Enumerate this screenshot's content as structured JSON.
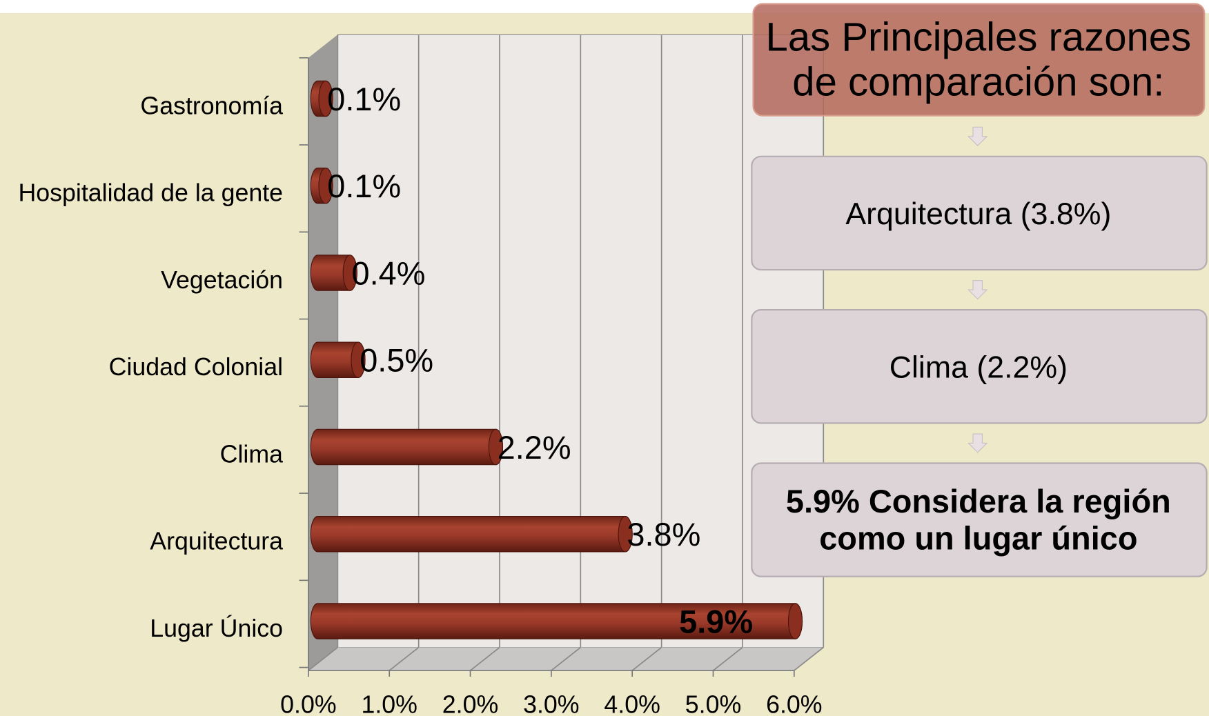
{
  "chart_data": {
    "type": "bar",
    "orientation": "horizontal",
    "categories": [
      "Gastronomía",
      "Hospitalidad de la gente",
      "Vegetación",
      "Ciudad Colonial",
      "Clima",
      "Arquitectura",
      "Lugar Único"
    ],
    "values": [
      0.1,
      0.1,
      0.4,
      0.5,
      2.2,
      3.8,
      5.9
    ],
    "value_labels": [
      "0.1%",
      "0.1%",
      "0.4%",
      "0.5%",
      "2.2%",
      "3.8%",
      "5.9%"
    ],
    "color": "#9b3a2a",
    "xlim": [
      0,
      6
    ],
    "xticks": [
      {
        "value": 0,
        "label": "0.0%"
      },
      {
        "value": 1,
        "label": "1.0%"
      },
      {
        "value": 2,
        "label": "2.0%"
      },
      {
        "value": 3,
        "label": "3.0%"
      },
      {
        "value": 4,
        "label": "4.0%"
      },
      {
        "value": 5,
        "label": "5.0%"
      },
      {
        "value": 6,
        "label": "6.0%"
      }
    ],
    "grid": true
  },
  "diagram": {
    "title_lines": [
      "Las Principales razones",
      "de comparación son:"
    ],
    "steps": [
      [
        "Arquitectura (3.8%)"
      ],
      [
        "Clima (2.2%)"
      ],
      [
        "5.9% Considera la región",
        "como un lugar único"
      ]
    ]
  }
}
